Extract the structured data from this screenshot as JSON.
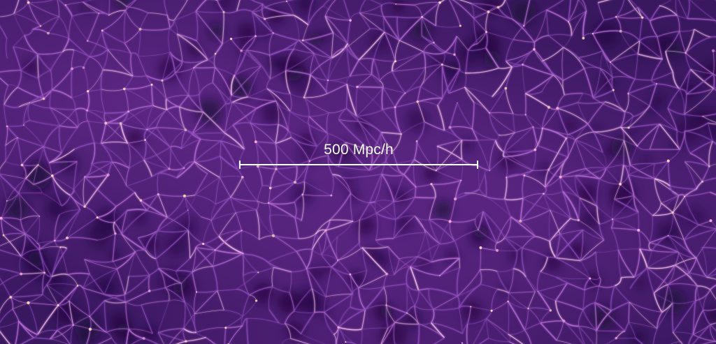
{
  "scale": {
    "label": "500 Mpc/h"
  },
  "colors": {
    "void": "#2a1248",
    "filament": "#b070d0",
    "node": "#ffd9a8"
  }
}
